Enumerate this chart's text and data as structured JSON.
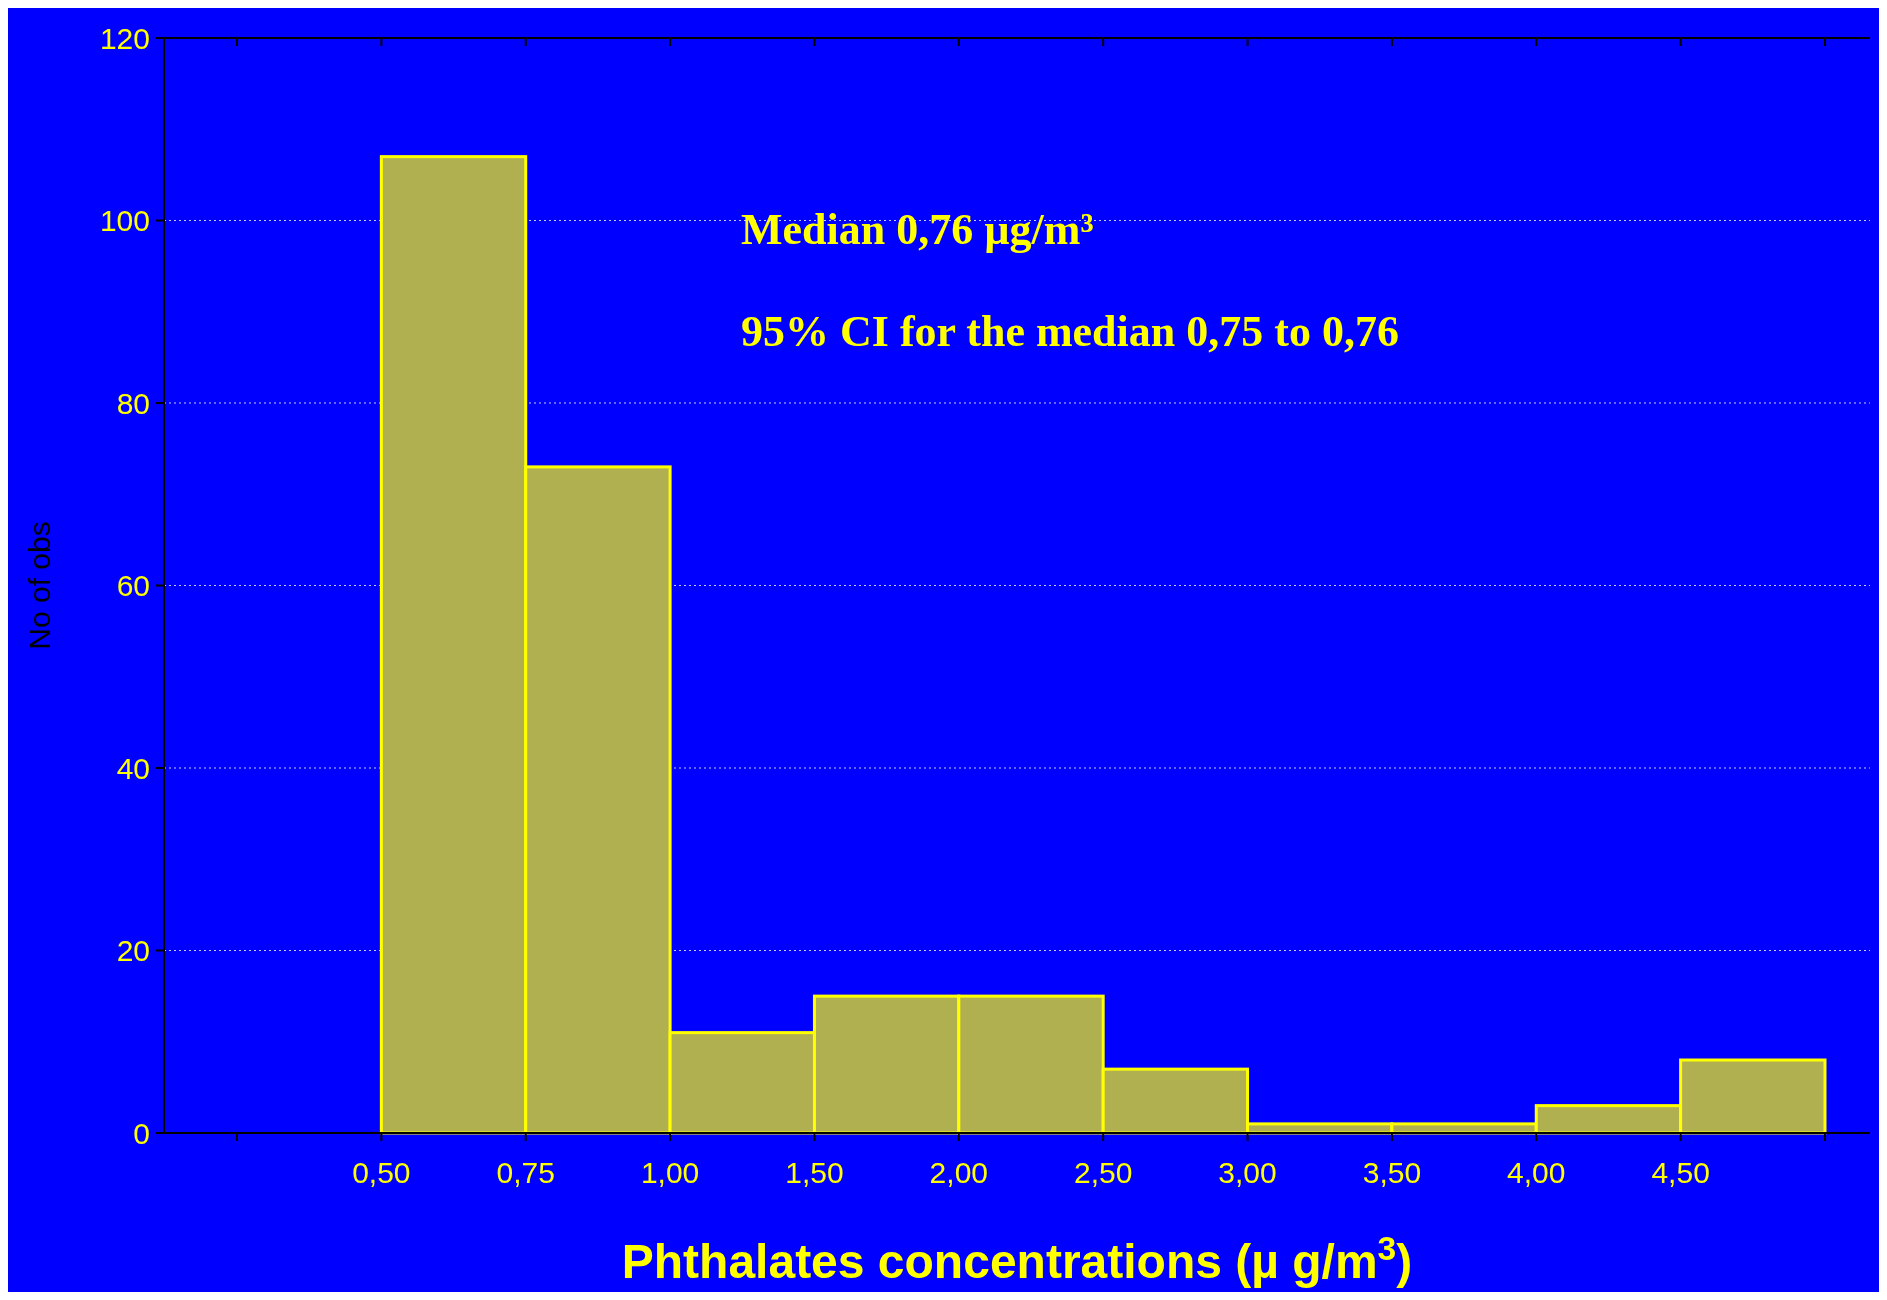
{
  "chart_data": {
    "type": "bar",
    "xlabel": "Phthalates concentrations (µ g/m$^{3}$)",
    "ylabel": "No of obs",
    "categories": [
      null,
      "0,50",
      "0,75",
      "1,00",
      "1,50",
      "2,00",
      "2,50",
      "3,00",
      "3,50",
      "4,00",
      "4,50"
    ],
    "values": [
      0,
      107,
      73,
      11,
      15,
      15,
      7,
      1,
      1,
      3,
      8
    ],
    "color": "#b0b050",
    "ylim": [
      0,
      120
    ],
    "yticks": [
      0,
      20,
      40,
      60,
      80,
      100,
      120
    ],
    "grid": "y",
    "annotations": [
      "Median 0,76 µg/m³",
      "95% CI for the median 0,75 to 0,76"
    ]
  }
}
